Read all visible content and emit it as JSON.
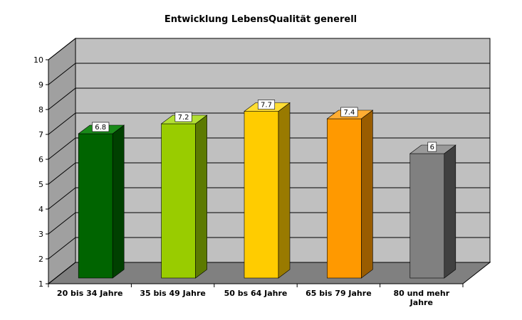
{
  "chart_data": {
    "type": "bar",
    "title": "Entwicklung LebensQualität generell",
    "categories": [
      "20 bis 34 Jahre",
      "35 bis 49 Jahre",
      "50 bs 64 Jahre",
      "65 bis 79 Jahre",
      "80 und mehr Jahre"
    ],
    "values": [
      6.8,
      7.2,
      7.7,
      7.4,
      6
    ],
    "data_labels": [
      "6.8",
      "7.2",
      "7.7",
      "7.4",
      "6"
    ],
    "ylim": [
      1,
      10
    ],
    "yticks": [
      "1",
      "2",
      "3",
      "4",
      "5",
      "6",
      "7",
      "8",
      "9",
      "10"
    ],
    "grid": true,
    "three_d": true,
    "colors": {
      "bars_front": [
        "#006400",
        "#99cc00",
        "#ffcc00",
        "#ff9900",
        "#808080"
      ],
      "bars_top": [
        "#1a8a1a",
        "#b3e033",
        "#ffdd33",
        "#ffad33",
        "#9a9a9a"
      ],
      "bars_side": [
        "#004000",
        "#5c7a00",
        "#997a00",
        "#995c00",
        "#404040"
      ],
      "wall": "#c0c0c0",
      "side_wall": "#a0a0a0",
      "floor": "#808080"
    }
  }
}
